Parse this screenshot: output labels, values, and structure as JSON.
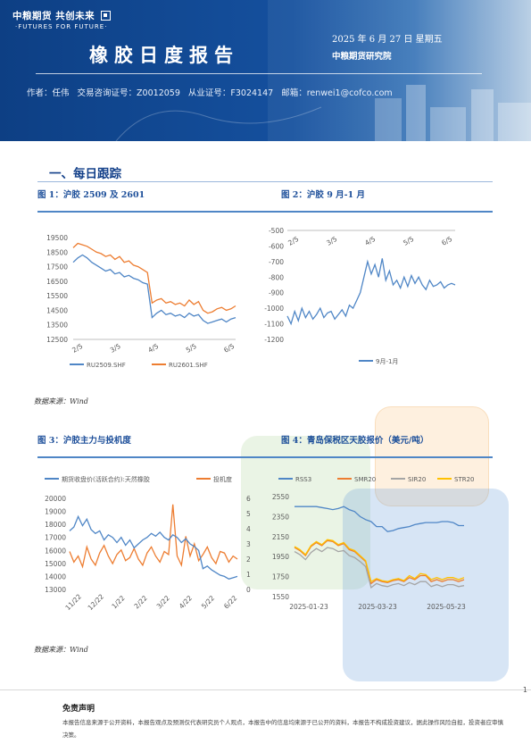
{
  "header": {
    "logo_cn": "中粮期货 共创未来",
    "logo_en": "·FUTURES FOR FUTURE·",
    "report_title": "橡胶日度报告",
    "date": "2025 年 6 月 27 日 星期五",
    "institute": "中粮期货研究院",
    "author_label": "作者：任伟",
    "consult_label": "交易咨询证号：Z0012059",
    "license_label": "从业证号：F3024147",
    "email_label": "邮箱：renwei1@cofco.com"
  },
  "section": {
    "title": "一、每日跟踪"
  },
  "figures": {
    "fig1_title": "图 1：沪胶 2509 及 2601",
    "fig2_title": "图 2：沪胶 9 月-1 月",
    "fig3_title": "图 3：沪胶主力与投机度",
    "fig4_title": "图 4：青岛保税区天胶报价（美元/吨）",
    "source_1": "数据来源：Wind",
    "source_2": "数据来源：Wind"
  },
  "colors": {
    "blue": "#4f86c6",
    "orange": "#ed7d31",
    "gray": "#a5a5a5",
    "gold": "#ffc000",
    "navy": "#14418a"
  },
  "chart_data": [
    {
      "type": "line",
      "title": "",
      "x_ticks": [
        "2/5",
        "3/5",
        "4/5",
        "5/5",
        "6/5"
      ],
      "ylim": [
        12500,
        19500
      ],
      "y_ticks": [
        12500,
        13500,
        14500,
        15500,
        16500,
        17500,
        18500,
        19500
      ],
      "series": [
        {
          "name": "RU2509.SHF",
          "color": "#4f86c6",
          "values": [
            17800,
            18100,
            18300,
            18100,
            17800,
            17600,
            17400,
            17200,
            17300,
            17000,
            17100,
            16800,
            16900,
            16700,
            16600,
            16400,
            16300,
            14000,
            14300,
            14500,
            14200,
            14300,
            14100,
            14200,
            14000,
            14300,
            14100,
            14200,
            13800,
            13600,
            13700,
            13800,
            13900,
            13700,
            13900,
            14000
          ]
        },
        {
          "name": "RU2601.SHF",
          "color": "#ed7d31",
          "values": [
            18800,
            19100,
            19000,
            18900,
            18700,
            18500,
            18400,
            18200,
            18300,
            18000,
            18200,
            17800,
            17900,
            17600,
            17500,
            17300,
            17100,
            15000,
            15200,
            15300,
            15000,
            15100,
            14900,
            15000,
            14800,
            15200,
            14900,
            15100,
            14500,
            14300,
            14400,
            14600,
            14700,
            14500,
            14600,
            14800
          ]
        }
      ]
    },
    {
      "type": "line",
      "title": "",
      "x_ticks": [
        "2/5",
        "3/5",
        "4/5",
        "5/5",
        "6/5"
      ],
      "ylim": [
        -1200,
        -500
      ],
      "y_ticks": [
        -500,
        -600,
        -700,
        -800,
        -900,
        -1000,
        -1100,
        -1200
      ],
      "series": [
        {
          "name": "9月-1月",
          "color": "#4f86c6",
          "values": [
            -1050,
            -1100,
            -1020,
            -1080,
            -1000,
            -1060,
            -1020,
            -1070,
            -1040,
            -1000,
            -1060,
            -1030,
            -1020,
            -1070,
            -1040,
            -1010,
            -1050,
            -980,
            -1000,
            -950,
            -900,
            -800,
            -700,
            -780,
            -720,
            -800,
            -680,
            -820,
            -760,
            -850,
            -820,
            -870,
            -800,
            -860,
            -790,
            -840,
            -800,
            -850,
            -880,
            -820,
            -860,
            -850,
            -830,
            -870,
            -850,
            -840,
            -850
          ]
        }
      ]
    },
    {
      "type": "line",
      "title": "",
      "x_ticks": [
        "11/22",
        "12/22",
        "1/22",
        "2/22",
        "3/22",
        "4/22",
        "5/22",
        "6/22"
      ],
      "ylim": [
        13000,
        20000
      ],
      "y_ticks": [
        13000,
        14000,
        15000,
        16000,
        17000,
        18000,
        19000,
        20000
      ],
      "y2lim": [
        0,
        6
      ],
      "y2_ticks": [
        0,
        1,
        2,
        3,
        4,
        5,
        6
      ],
      "series": [
        {
          "name": "期货收盘价(活跃合约):天然橡胶",
          "color": "#4f86c6",
          "axis": "left",
          "values": [
            17500,
            17800,
            18600,
            17900,
            18400,
            17600,
            17300,
            17500,
            16800,
            17200,
            17000,
            16600,
            17000,
            16400,
            16800,
            16200,
            16500,
            16800,
            17000,
            17300,
            17100,
            17400,
            17000,
            16800,
            17200,
            17000,
            16600,
            16900,
            16500,
            16300,
            16000,
            14600,
            14800,
            14500,
            14300,
            14100,
            14000,
            13800,
            13900,
            14000
          ]
        },
        {
          "name": "投机度",
          "color": "#ed7d31",
          "axis": "right",
          "values": [
            2.5,
            1.8,
            2.2,
            1.5,
            2.8,
            2.0,
            1.6,
            2.4,
            2.9,
            2.2,
            1.7,
            2.3,
            2.6,
            1.9,
            2.1,
            2.7,
            2.0,
            1.6,
            2.4,
            2.8,
            2.2,
            1.8,
            2.5,
            2.3,
            5.6,
            2.2,
            1.6,
            3.5,
            2.2,
            3.0,
            1.9,
            2.3,
            2.8,
            2.1,
            1.7,
            2.5,
            2.4,
            1.8,
            2.2,
            2.0
          ]
        }
      ]
    },
    {
      "type": "line",
      "title": "",
      "x_ticks": [
        "2025-01-23",
        "2025-03-23",
        "2025-05-23"
      ],
      "ylim": [
        1550,
        2550
      ],
      "y_ticks": [
        1550,
        1750,
        1950,
        2150,
        2350,
        2550
      ],
      "series": [
        {
          "name": "RSS3",
          "color": "#4f86c6",
          "values": [
            2450,
            2450,
            2450,
            2450,
            2450,
            2440,
            2430,
            2420,
            2430,
            2450,
            2420,
            2400,
            2350,
            2320,
            2300,
            2250,
            2250,
            2200,
            2210,
            2230,
            2240,
            2250,
            2270,
            2280,
            2290,
            2290,
            2290,
            2300,
            2300,
            2290,
            2260,
            2260
          ]
        },
        {
          "name": "SMR20",
          "color": "#ed7d31",
          "values": [
            2040,
            2010,
            1960,
            2050,
            2090,
            2060,
            2110,
            2100,
            2060,
            2080,
            2020,
            2000,
            1950,
            1900,
            1680,
            1720,
            1700,
            1690,
            1710,
            1720,
            1700,
            1740,
            1720,
            1760,
            1760,
            1700,
            1720,
            1700,
            1720,
            1720,
            1700,
            1720
          ]
        },
        {
          "name": "SIR20",
          "color": "#a5a5a5",
          "values": [
            2000,
            1970,
            1920,
            1990,
            2030,
            2000,
            2040,
            2030,
            2000,
            2010,
            1960,
            1940,
            1900,
            1850,
            1640,
            1680,
            1660,
            1650,
            1670,
            1680,
            1660,
            1690,
            1670,
            1700,
            1700,
            1650,
            1670,
            1650,
            1670,
            1670,
            1650,
            1660
          ]
        },
        {
          "name": "STR20",
          "color": "#ffc000",
          "values": [
            2050,
            2020,
            1970,
            2060,
            2100,
            2070,
            2120,
            2110,
            2070,
            2090,
            2030,
            2010,
            1960,
            1910,
            1700,
            1730,
            1710,
            1700,
            1720,
            1730,
            1710,
            1760,
            1730,
            1780,
            1770,
            1720,
            1740,
            1720,
            1740,
            1740,
            1720,
            1740
          ]
        }
      ]
    }
  ],
  "footer": {
    "page": "1",
    "disclaimer_title": "免责声明",
    "disclaimer_text": "本报告信息来源于公开资料，本报告观点及预测仅代表研究员个人观点，本报告中的信息均来源于已公开的资料，本报告不构成投资建议，据此操作风险自担，投资者应审慎决策。"
  }
}
